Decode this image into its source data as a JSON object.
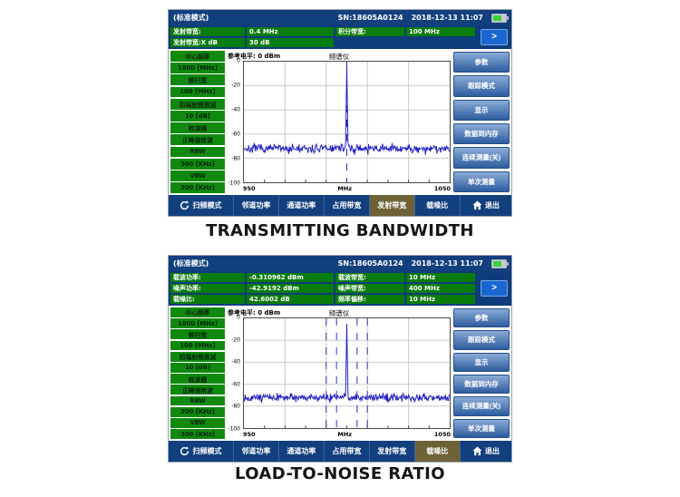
{
  "captions": {
    "panel1": "TRANSMITTING BANDWIDTH",
    "panel2": "LOAD-TO-NOISE RATIO"
  },
  "titlebar": {
    "mode": "(标准模式)",
    "sn": "SN:18605A0124",
    "datetime": "2018-12-13 11:07",
    "battery_icon": "battery-icon"
  },
  "sidebar_left": [
    "中心频率",
    "1000 [MHz]",
    "频扫宽",
    "100 [MHz]",
    "前端射频衰减",
    "10 [dB]",
    "检波器",
    "正峰值检波",
    "RBW",
    "300 [KHz]",
    "VBW",
    "300 [KHz]"
  ],
  "menu_right": [
    "参数",
    "跟踪模式",
    "显示",
    "数据到内存",
    "连续测量(关)",
    "单次测量"
  ],
  "menu_bottom": {
    "sweep_mode": "扫频模式",
    "items": [
      "邻道功率",
      "通道功率",
      "占用带宽",
      "发射带宽",
      "载噪比"
    ],
    "exit": "退出",
    "active_panel1": "发射带宽",
    "active_panel2": "载噪比"
  },
  "chart_labels": {
    "ref_level": "参考电平: 0 dBm",
    "title": "频谱仪",
    "x_left": "950",
    "x_center": "MHz",
    "x_right": "1050",
    "yticks": [
      "0",
      "-20",
      "-40",
      "-60",
      "-80",
      "-100"
    ]
  },
  "panel1_readouts": {
    "more": ">",
    "rows": [
      [
        "发射带宽:",
        "0.4 MHz",
        "积分带宽:",
        "100 MHz"
      ],
      [
        "发射带宽:X dB",
        "30 dB",
        "",
        ""
      ]
    ]
  },
  "panel2_readouts": {
    "more": ">",
    "rows": [
      [
        "载波功率:",
        "-0.310962 dBm",
        "载波带宽:",
        "10 MHz"
      ],
      [
        "噪声功率:",
        "-42.9192 dBm",
        "噪声带宽:",
        "400 MHz"
      ],
      [
        "载噪比:",
        "42.6002 dB",
        "频率偏移:",
        "10 MHz"
      ]
    ]
  },
  "colors": {
    "navy": "#12407e",
    "readout_green": "#0a7c0a",
    "sidebar_green": "#0f8a0f",
    "active_olive": "#6e6136",
    "softkey_blue": "#2d5c9e",
    "more_blue": "#1a67d2",
    "trace_blue": "#2121c8",
    "marker_blue": "#3030bb",
    "battery_green": "#3cd23c"
  },
  "chart_data": [
    {
      "type": "line",
      "title": "频谱仪",
      "xlabel": "MHz",
      "xlim": [
        950,
        1050
      ],
      "ylim": [
        -100,
        0
      ],
      "xticks": [
        950,
        1050
      ],
      "yticks": [
        0,
        -20,
        -40,
        -60,
        -80,
        -100
      ],
      "grid": true,
      "grid_step_x_mhz": 20,
      "grid_step_y_db": 20,
      "noise_floor_dbm": -72,
      "peak": {
        "x_mhz": 1000,
        "y_dbm": -3
      },
      "marker_lines_mhz": [
        1000
      ],
      "seed": 7
    },
    {
      "type": "line",
      "title": "频谱仪",
      "xlabel": "MHz",
      "xlim": [
        950,
        1050
      ],
      "ylim": [
        -100,
        0
      ],
      "xticks": [
        950,
        1050
      ],
      "yticks": [
        0,
        -20,
        -40,
        -60,
        -80,
        -100
      ],
      "grid": true,
      "grid_step_x_mhz": 20,
      "grid_step_y_db": 20,
      "noise_floor_dbm": -72,
      "peak": {
        "x_mhz": 1000,
        "y_dbm": -5
      },
      "marker_lines_mhz": [
        990,
        995,
        1005,
        1010
      ],
      "seed": 13
    }
  ]
}
